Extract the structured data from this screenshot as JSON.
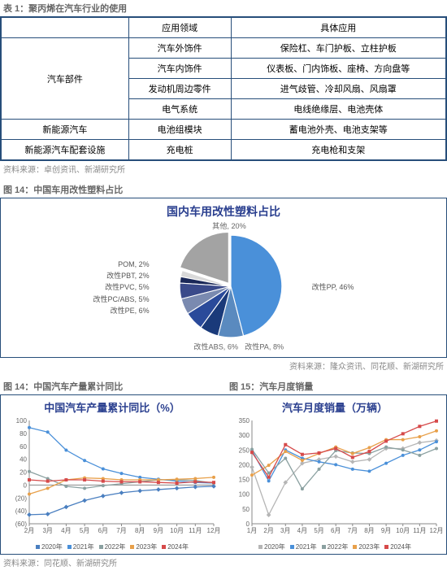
{
  "table": {
    "caption": "表 1：聚丙烯在汽车行业的使用",
    "headers": [
      "",
      "应用领域",
      "具体应用"
    ],
    "rows": [
      {
        "c0": "汽车部件",
        "c0_span": 4,
        "c1": "汽车外饰件",
        "c2": "保险杠、车门护板、立柱护板"
      },
      {
        "c1": "汽车内饰件",
        "c2": "仪表板、门内饰板、座椅、方向盘等"
      },
      {
        "c1": "发动机周边零件",
        "c2": "进气歧管、冷却风扇、风扇罩"
      },
      {
        "c1": "电气系统",
        "c2": "电线绝缘层、电池壳体"
      },
      {
        "c0": "新能源汽车",
        "c1": "电池组模块",
        "c2": "蓄电池外壳、电池支架等"
      },
      {
        "c0": "新能源汽车配套设施",
        "c1": "充电桩",
        "c2": "充电枪和支架"
      }
    ],
    "source": "资料来源：卓创资讯、新湖研究所"
  },
  "pie": {
    "caption": "图 14：中国车用改性塑料占比",
    "title": "国内车用改性塑料占比",
    "slices": [
      {
        "label": "改性PP, 46%",
        "value": 46,
        "color": "#4a90d9"
      },
      {
        "label": "其他, 20%",
        "value": 20,
        "color": "#a3a3a3"
      },
      {
        "label": "POM, 2%",
        "value": 2,
        "color": "#d9d9d9"
      },
      {
        "label": "改性PBT, 2%",
        "value": 2,
        "color": "#1a2858"
      },
      {
        "label": "改性PVC, 5%",
        "value": 5,
        "color": "#3a4a8a"
      },
      {
        "label": "改性PC/ABS, 5%",
        "value": 5,
        "color": "#7a8ab0"
      },
      {
        "label": "改性PE, 6%",
        "value": 6,
        "color": "#2a4a9a"
      },
      {
        "label": "改性ABS, 6%",
        "value": 6,
        "color": "#1a3a7a"
      },
      {
        "label": "改性PA, 8%",
        "value": 8,
        "color": "#5a8abf"
      }
    ],
    "left_labels": [
      "POM, 2%",
      "改性PBT, 2%",
      "改性PVC, 5%",
      "改性PC/ABS, 5%",
      "改性PE, 6%"
    ],
    "right_labels": [
      "改性PP, 46%"
    ],
    "bottom_labels": [
      "改性ABS, 6%",
      "改性PA, 8%"
    ],
    "top_labels": [
      "其他, 20%"
    ],
    "source": "资料来源：隆众资讯、同花顺、新湖研究所"
  },
  "line1": {
    "caption": "图 14：中国汽车产量累计同比",
    "title": "中国汽车产量累计同比（%）",
    "x_labels": [
      "2月",
      "3月",
      "4月",
      "5月",
      "6月",
      "7月",
      "8月",
      "9月",
      "10月",
      "11月",
      "12月"
    ],
    "y_min": -60,
    "y_max": 100,
    "y_step": 20,
    "y_neg_color": "#cc0000",
    "series": [
      {
        "name": "2020年",
        "color": "#4a7fc0",
        "marker": "diamond",
        "data": [
          -46,
          -45,
          -34,
          -24,
          -17,
          -12,
          -9,
          -7,
          -5,
          -3,
          -2
        ]
      },
      {
        "name": "2021年",
        "color": "#4a90d9",
        "marker": "circle",
        "data": [
          89,
          82,
          54,
          38,
          25,
          18,
          12,
          9,
          6,
          4,
          3
        ]
      },
      {
        "name": "2022年",
        "color": "#8aa0a0",
        "marker": "circle",
        "data": [
          21,
          10,
          -2,
          -5,
          -1,
          2,
          5,
          8,
          8,
          7,
          3
        ]
      },
      {
        "name": "2023年",
        "color": "#e8a04a",
        "marker": "circle",
        "data": [
          -14,
          -5,
          8,
          11,
          10,
          8,
          8,
          8,
          9,
          10,
          12
        ]
      },
      {
        "name": "2024年",
        "color": "#d64a4a",
        "marker": "square",
        "data": [
          8,
          6,
          8,
          8,
          6,
          5,
          5,
          4,
          3,
          5,
          4
        ]
      }
    ]
  },
  "line2": {
    "caption": "图 15：汽车月度销量",
    "title": "汽车月度销量（万辆）",
    "x_labels": [
      "1月",
      "2月",
      "3月",
      "4月",
      "5月",
      "6月",
      "7月",
      "8月",
      "9月",
      "10月",
      "11月",
      "12月"
    ],
    "y_min": 0,
    "y_max": 350,
    "y_step": 50,
    "series": [
      {
        "name": "2020年",
        "color": "#b5b5b5",
        "marker": "diamond",
        "data": [
          192,
          30,
          140,
          205,
          218,
          228,
          210,
          218,
          255,
          255,
          275,
          282
        ]
      },
      {
        "name": "2021年",
        "color": "#4a90d9",
        "marker": "circle",
        "data": [
          248,
          145,
          250,
          222,
          210,
          200,
          185,
          178,
          205,
          232,
          250,
          278
        ]
      },
      {
        "name": "2022年",
        "color": "#8aa0a0",
        "marker": "circle",
        "data": [
          252,
          172,
          222,
          118,
          185,
          248,
          240,
          238,
          260,
          250,
          232,
          255
        ]
      },
      {
        "name": "2023年",
        "color": "#e8a04a",
        "marker": "circle",
        "data": [
          165,
          198,
          245,
          215,
          238,
          260,
          238,
          258,
          285,
          285,
          295,
          315
        ]
      },
      {
        "name": "2024年",
        "color": "#d64a4a",
        "marker": "square",
        "data": [
          242,
          158,
          268,
          235,
          240,
          255,
          225,
          245,
          280,
          305,
          330,
          348
        ]
      }
    ]
  },
  "pair_source": "资料来源：同花顺、新湖研究所"
}
